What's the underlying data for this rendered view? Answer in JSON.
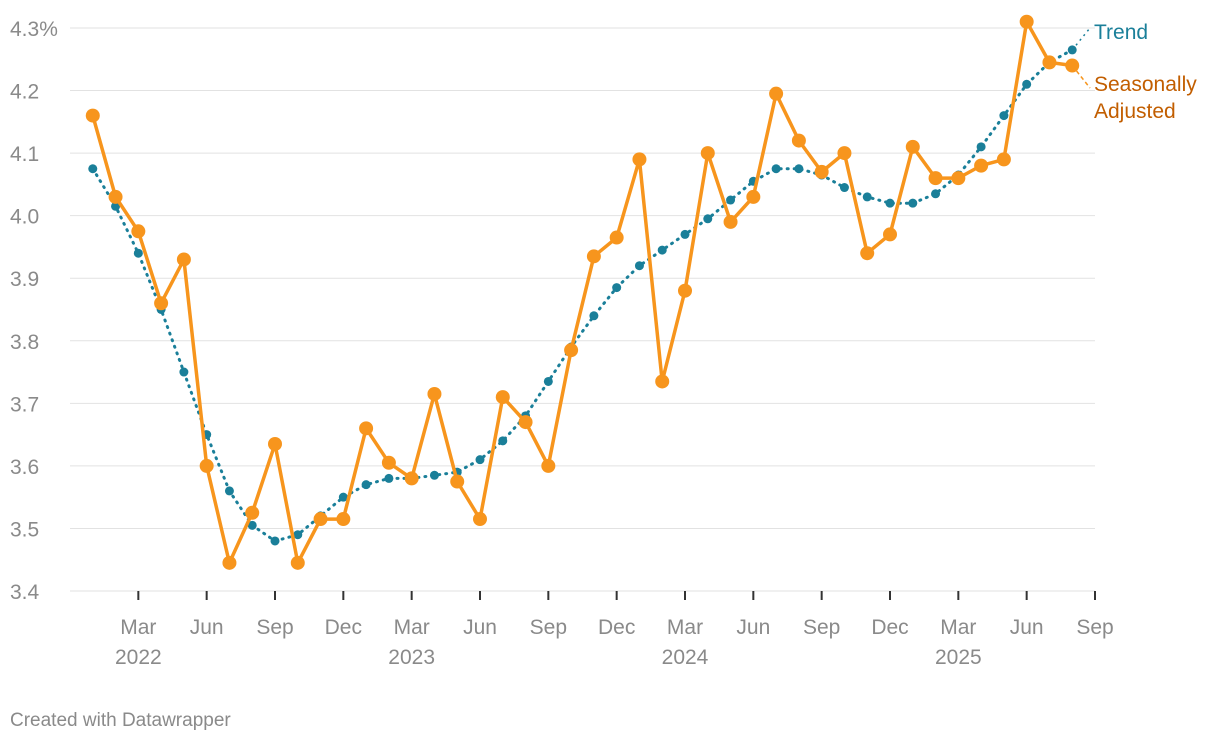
{
  "chart_data": {
    "type": "line",
    "title": "",
    "xlabel": "",
    "ylabel": "",
    "ylim": [
      3.4,
      4.3
    ],
    "yticks": [
      3.4,
      3.5,
      3.6,
      3.7,
      3.8,
      3.9,
      4.0,
      4.1,
      4.2,
      4.3
    ],
    "ytick_labels": [
      "3.4",
      "3.5",
      "3.6",
      "3.7",
      "3.8",
      "3.9",
      "4.0",
      "4.1",
      "4.2",
      "4.3%"
    ],
    "xlim": [
      "2021-12",
      "2025-09"
    ],
    "xticks": [
      {
        "date": "2022-03",
        "month": "Mar",
        "year": "2022"
      },
      {
        "date": "2022-06",
        "month": "Jun",
        "year": ""
      },
      {
        "date": "2022-09",
        "month": "Sep",
        "year": ""
      },
      {
        "date": "2022-12",
        "month": "Dec",
        "year": ""
      },
      {
        "date": "2023-03",
        "month": "Mar",
        "year": "2023"
      },
      {
        "date": "2023-06",
        "month": "Jun",
        "year": ""
      },
      {
        "date": "2023-09",
        "month": "Sep",
        "year": ""
      },
      {
        "date": "2023-12",
        "month": "Dec",
        "year": ""
      },
      {
        "date": "2024-03",
        "month": "Mar",
        "year": "2024"
      },
      {
        "date": "2024-06",
        "month": "Jun",
        "year": ""
      },
      {
        "date": "2024-09",
        "month": "Sep",
        "year": ""
      },
      {
        "date": "2024-12",
        "month": "Dec",
        "year": ""
      },
      {
        "date": "2025-03",
        "month": "Mar",
        "year": "2025"
      },
      {
        "date": "2025-06",
        "month": "Jun",
        "year": ""
      },
      {
        "date": "2025-09",
        "month": "Sep",
        "year": ""
      }
    ],
    "x": [
      "2022-01",
      "2022-02",
      "2022-03",
      "2022-04",
      "2022-05",
      "2022-06",
      "2022-07",
      "2022-08",
      "2022-09",
      "2022-10",
      "2022-11",
      "2022-12",
      "2023-01",
      "2023-02",
      "2023-03",
      "2023-04",
      "2023-05",
      "2023-06",
      "2023-07",
      "2023-08",
      "2023-09",
      "2023-10",
      "2023-11",
      "2023-12",
      "2024-01",
      "2024-02",
      "2024-03",
      "2024-04",
      "2024-05",
      "2024-06",
      "2024-07",
      "2024-08",
      "2024-09",
      "2024-10",
      "2024-11",
      "2024-12",
      "2025-01",
      "2025-02",
      "2025-03",
      "2025-04",
      "2025-05",
      "2025-06",
      "2025-07",
      "2025-08"
    ],
    "grid": true,
    "legend": "inline-right",
    "series": [
      {
        "name": "Seasonally Adjusted",
        "label_lines": [
          "Seasonally",
          "Adjusted"
        ],
        "color": "#f7951d",
        "label_color": "#c25e00",
        "style": "solid",
        "values": [
          4.16,
          4.03,
          3.975,
          3.86,
          3.93,
          3.6,
          3.445,
          3.525,
          3.635,
          3.445,
          3.515,
          3.515,
          3.66,
          3.605,
          3.58,
          3.715,
          3.575,
          3.515,
          3.71,
          3.67,
          3.6,
          3.785,
          3.935,
          3.965,
          4.09,
          3.735,
          3.88,
          4.1,
          3.99,
          4.03,
          4.195,
          4.12,
          4.07,
          4.1,
          3.94,
          3.97,
          4.11,
          4.06,
          4.06,
          4.08,
          4.09,
          4.31,
          4.245,
          4.24
        ]
      },
      {
        "name": "Trend",
        "label_lines": [
          "Trend"
        ],
        "color": "#1a7f99",
        "label_color": "#1a7f99",
        "style": "dotted",
        "values": [
          4.075,
          4.015,
          3.94,
          3.85,
          3.75,
          3.65,
          3.56,
          3.505,
          3.48,
          3.49,
          3.52,
          3.55,
          3.57,
          3.58,
          3.58,
          3.585,
          3.59,
          3.61,
          3.64,
          3.68,
          3.735,
          3.79,
          3.84,
          3.885,
          3.92,
          3.945,
          3.97,
          3.995,
          4.025,
          4.055,
          4.075,
          4.075,
          4.065,
          4.045,
          4.03,
          4.02,
          4.02,
          4.035,
          4.065,
          4.11,
          4.16,
          4.21,
          4.245,
          4.265
        ]
      }
    ]
  },
  "footer": {
    "credit": "Created with Datawrapper"
  }
}
